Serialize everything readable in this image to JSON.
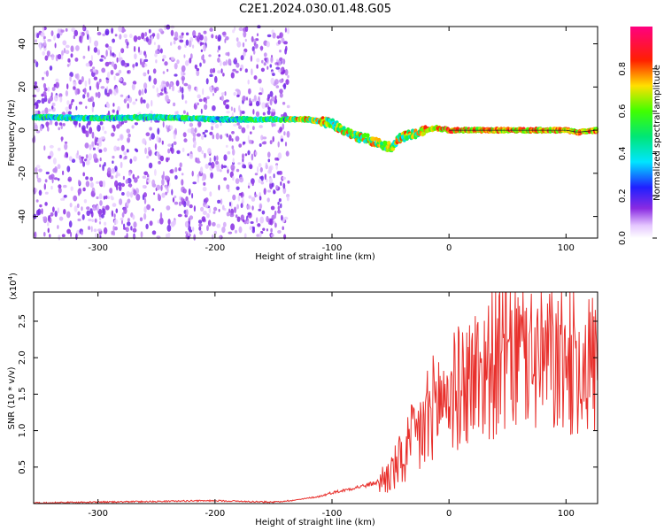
{
  "title": "C2E1.2024.030.01.48.G05",
  "colors": {
    "snr_line": "#e8302c",
    "axis": "#000000"
  },
  "chart_data": [
    {
      "type": "heatmap",
      "xlabel": "Height of straight line (km)",
      "ylabel": "Frequency (Hz)",
      "xlim": [
        -355,
        127
      ],
      "ylim": [
        -50,
        48
      ],
      "xticks": [
        -300,
        -200,
        -100,
        0,
        100
      ],
      "xtick_labels": [
        "-300",
        "-200",
        "-100",
        "0",
        "100"
      ],
      "yticks": [
        -40,
        -20,
        0,
        20,
        40
      ],
      "ytick_labels": [
        "-40",
        "-20",
        "0",
        "20",
        "40"
      ],
      "colorbar": {
        "label": "Normalized spectral amplitude",
        "range": [
          0,
          1
        ],
        "ticks": [
          0.0,
          0.2,
          0.4,
          0.6,
          0.8
        ],
        "tick_labels": [
          "0.0",
          "0.2",
          "0.4",
          "0.6",
          "0.8"
        ],
        "colormap": "rainbow (white-purple-blue-cyan-green-yellow-red-magenta)"
      },
      "ridge": {
        "description": "dominant frequency ridge",
        "x": [
          -355,
          -300,
          -250,
          -200,
          -150,
          -120,
          -100,
          -90,
          -80,
          -70,
          -60,
          -50,
          -40,
          -30,
          -20,
          -10,
          0,
          50,
          100,
          110,
          127
        ],
        "y": [
          6,
          5.5,
          6,
          5,
          5,
          5,
          3,
          0,
          -3,
          -4,
          -6,
          -8,
          -3,
          -2,
          0,
          1,
          0,
          0,
          0,
          -1,
          0
        ]
      },
      "noise_region": {
        "x_start": -355,
        "x_end": -137
      }
    },
    {
      "type": "line",
      "xlabel": "Height of straight line (km)",
      "ylabel": "SNR (10 * v/v)",
      "y_multiplier_label": "(x10",
      "y_multiplier_exp": "4",
      "y_multiplier_close": ")",
      "xlim": [
        -355,
        127
      ],
      "ylim": [
        0,
        2.9
      ],
      "xticks": [
        -300,
        -200,
        -100,
        0,
        100
      ],
      "xtick_labels": [
        "-300",
        "-200",
        "-100",
        "0",
        "100"
      ],
      "yticks": [
        0.5,
        1.0,
        1.5,
        2.0,
        2.5
      ],
      "ytick_labels": [
        "0.5",
        "1.0",
        "1.5",
        "2.0",
        "2.5"
      ],
      "series": [
        {
          "color": "#e8302c",
          "x": [
            -355,
            -300,
            -250,
            -200,
            -150,
            -130,
            -110,
            -100,
            -90,
            -80,
            -70,
            -60,
            -50,
            -40,
            -30,
            -20,
            -15,
            -10,
            0,
            10,
            20,
            30,
            40,
            50,
            60,
            70,
            80,
            90,
            100,
            110,
            120,
            127
          ],
          "y": [
            0.01,
            0.02,
            0.03,
            0.04,
            0.02,
            0.05,
            0.1,
            0.15,
            0.18,
            0.22,
            0.25,
            0.3,
            0.4,
            0.6,
            0.85,
            1.1,
            1.3,
            1.4,
            1.5,
            1.6,
            1.75,
            1.85,
            1.95,
            2.0,
            2.05,
            2.0,
            1.98,
            1.95,
            1.95,
            1.95,
            1.95,
            1.95
          ]
        }
      ]
    }
  ]
}
